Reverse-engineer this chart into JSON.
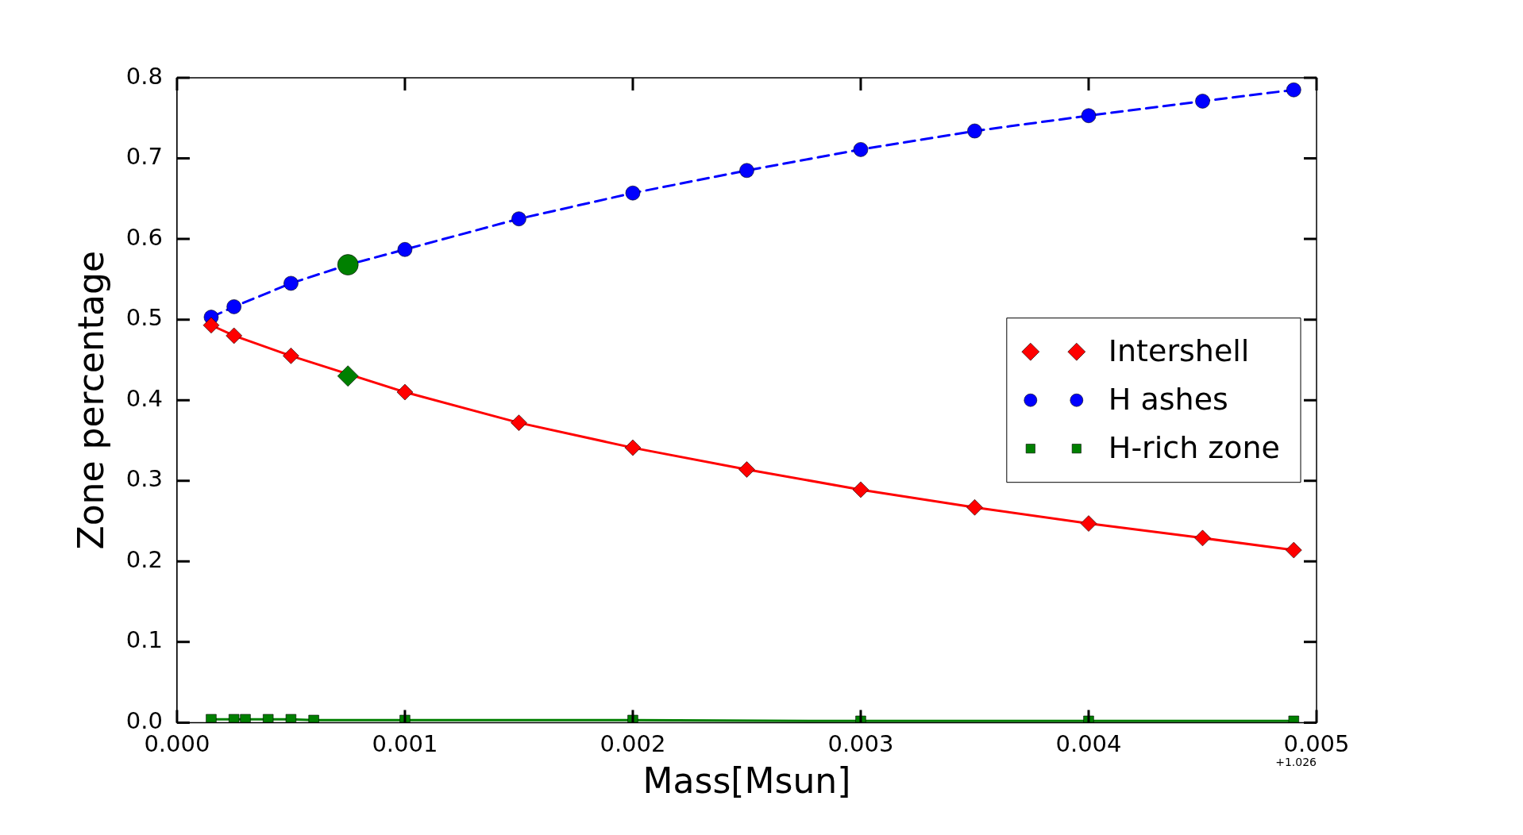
{
  "chart_data": {
    "type": "line",
    "xlabel": "Mass[Msun]",
    "ylabel": "Zone percentage",
    "xlim": [
      0,
      0.005
    ],
    "xticks": [
      {
        "value": 0,
        "label": "0.000"
      },
      {
        "value": 0.001,
        "label": "0.001"
      },
      {
        "value": 0.002,
        "label": "0.002"
      },
      {
        "value": 0.003,
        "label": "0.003"
      },
      {
        "value": 0.004,
        "label": "0.004"
      },
      {
        "value": 0.005,
        "label": "0.005"
      }
    ],
    "ylim": [
      0,
      0.8
    ],
    "yticks": [
      {
        "value": 0,
        "label": "0.0"
      },
      0.1,
      0.2,
      0.3,
      0.4,
      0.5,
      0.6,
      0.7,
      0.8
    ],
    "grid": false,
    "legend": "right",
    "annotations": [
      "+1.026"
    ],
    "series": [
      {
        "name": "Intershell",
        "color": "#ff0000",
        "marker": "diamond",
        "line_style": "solid",
        "x": [
          0.00015,
          0.00025,
          0.0005,
          0.001,
          0.0015,
          0.002,
          0.0025,
          0.003,
          0.0035,
          0.004,
          0.0045,
          0.0049
        ],
        "values": [
          0.493,
          0.48,
          0.455,
          0.41,
          0.372,
          0.341,
          0.314,
          0.289,
          0.267,
          0.247,
          0.229,
          0.214
        ]
      },
      {
        "name": "H ashes",
        "color": "#0000ff",
        "marker": "circle",
        "line_style": "dashed",
        "x": [
          0.00015,
          0.00025,
          0.0005,
          0.00075,
          0.001,
          0.0015,
          0.002,
          0.0025,
          0.003,
          0.0035,
          0.004,
          0.0045,
          0.0049
        ],
        "values": [
          0.503,
          0.516,
          0.545,
          0.568,
          0.587,
          0.625,
          0.657,
          0.685,
          0.711,
          0.734,
          0.753,
          0.771,
          0.785
        ]
      },
      {
        "name": "H-rich zone",
        "color": "#008000",
        "marker": "square",
        "line_style": "solid",
        "x": [
          0.00015,
          0.00025,
          0.0003,
          0.0004,
          0.0005,
          0.0006,
          0.001,
          0.002,
          0.003,
          0.004,
          0.0049
        ],
        "values": [
          0.004,
          0.004,
          0.004,
          0.004,
          0.004,
          0.003,
          0.003,
          0.003,
          0.002,
          0.002,
          0.002
        ]
      },
      {
        "type": "scatter",
        "color": "#008000",
        "marker": "circle",
        "x": [
          0.00075
        ],
        "values": [
          0.568
        ]
      },
      {
        "type": "scatter",
        "color": "#008000",
        "marker": "diamond",
        "x": [
          0.00075
        ],
        "values": [
          0.43
        ]
      }
    ]
  }
}
